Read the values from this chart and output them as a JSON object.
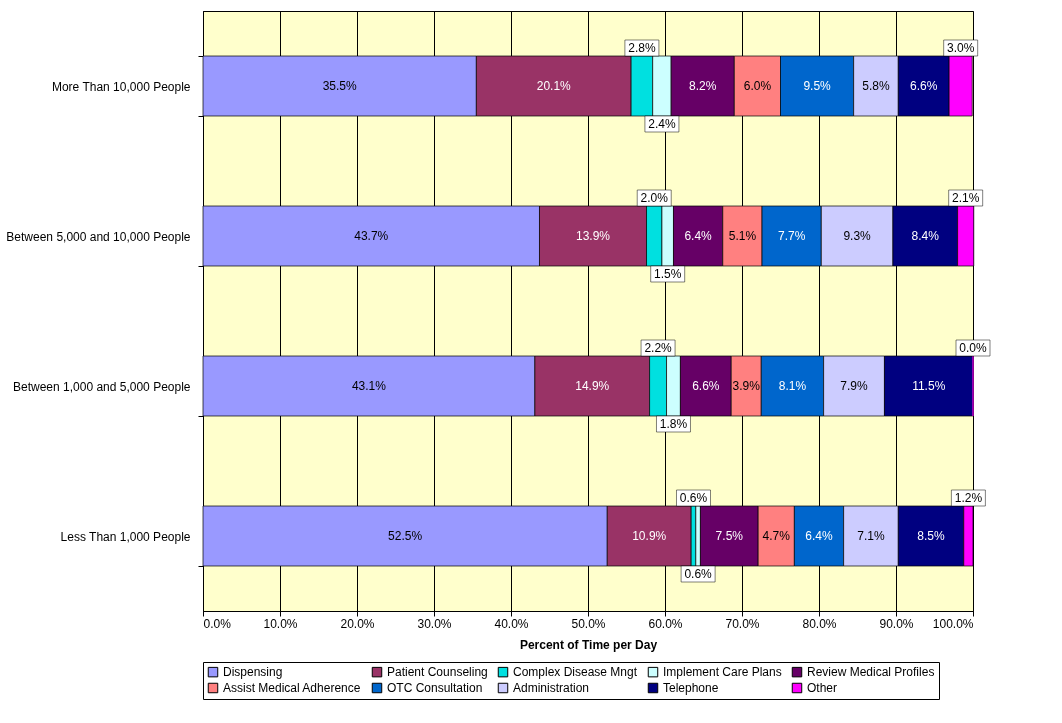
{
  "chart_data": {
    "type": "bar",
    "orientation": "horizontal",
    "stacked": true,
    "xlabel": "Percent of Time per Day",
    "categories": [
      "More Than 10,000 People",
      "Between 5,000 and 10,000 People",
      "Between 1,000 and 5,000 People",
      "Less Than 1,000 People"
    ],
    "series": [
      {
        "name": "Dispensing",
        "color": "#9999ff",
        "values": [
          35.5,
          43.7,
          43.1,
          52.5
        ],
        "value_labels": [
          "35.5%",
          "43.7%",
          "43.1%",
          "52.5%"
        ]
      },
      {
        "name": "Patient Counseling",
        "color": "#993366",
        "values": [
          20.1,
          13.9,
          14.9,
          10.9
        ],
        "value_labels": [
          "20.1%",
          "13.9%",
          "14.9%",
          "10.9%"
        ]
      },
      {
        "name": "Complex Disease Mngt",
        "color": "#00e0e0",
        "values": [
          2.8,
          2.0,
          2.2,
          0.6
        ],
        "value_labels": [
          "2.8%",
          "2.0%",
          "2.2%",
          "0.6%"
        ]
      },
      {
        "name": "Implement Care Plans",
        "color": "#ccffff",
        "values": [
          2.4,
          1.5,
          1.8,
          0.6
        ],
        "value_labels": [
          "2.4%",
          "1.5%",
          "1.8%",
          "0.6%"
        ]
      },
      {
        "name": "Review Medical Profiles",
        "color": "#660066",
        "values": [
          8.2,
          6.4,
          6.6,
          7.5
        ],
        "value_labels": [
          "8.2%",
          "6.4%",
          "6.6%",
          "7.5%"
        ]
      },
      {
        "name": "Assist Medical Adherence",
        "color": "#ff8080",
        "values": [
          6.0,
          5.1,
          3.9,
          4.7
        ],
        "value_labels": [
          "6.0%",
          "5.1%",
          "3.9%",
          "4.7%"
        ]
      },
      {
        "name": "OTC Consultation",
        "color": "#0066cc",
        "values": [
          9.5,
          7.7,
          8.1,
          6.4
        ],
        "value_labels": [
          "9.5%",
          "7.7%",
          "8.1%",
          "6.4%"
        ]
      },
      {
        "name": "Administration",
        "color": "#ccccff",
        "values": [
          5.8,
          9.3,
          7.9,
          7.1
        ],
        "value_labels": [
          "5.8%",
          "9.3%",
          "7.9%",
          "7.1%"
        ]
      },
      {
        "name": "Telephone",
        "color": "#000080",
        "values": [
          6.6,
          8.4,
          11.5,
          8.5
        ],
        "value_labels": [
          "6.6%",
          "8.4%",
          "11.5%",
          "8.5%"
        ]
      },
      {
        "name": "Other",
        "color": "#ff00ff",
        "values": [
          3.0,
          2.1,
          0.0,
          1.2
        ],
        "value_labels": [
          "3.0%",
          "2.1%",
          "0.0%",
          "1.2%"
        ]
      }
    ],
    "xlim": [
      0,
      100
    ],
    "xticks": [
      {
        "value": 0,
        "label": "0.0%"
      },
      {
        "value": 10,
        "label": "10.0%"
      },
      {
        "value": 20,
        "label": "20.0%"
      },
      {
        "value": 30,
        "label": "30.0%"
      },
      {
        "value": 40,
        "label": "40.0%"
      },
      {
        "value": 50,
        "label": "50.0%"
      },
      {
        "value": 60,
        "label": "60.0%"
      },
      {
        "value": 70,
        "label": "70.0%"
      },
      {
        "value": 80,
        "label": "80.0%"
      },
      {
        "value": 90,
        "label": "90.0%"
      },
      {
        "value": 100,
        "label": "100.0%"
      }
    ],
    "grid": "x",
    "legend": "bottom"
  }
}
